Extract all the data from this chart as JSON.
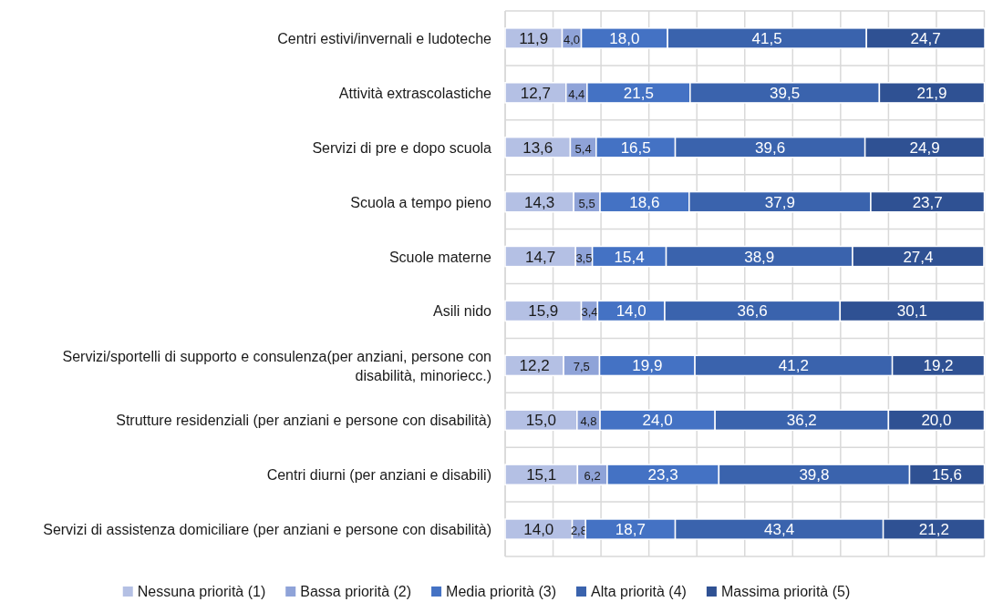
{
  "chart_data": {
    "type": "bar",
    "orientation": "horizontal",
    "stacked": true,
    "grid": true,
    "legend": "bottom",
    "tick_labels": "y",
    "categories": [
      "Centri estivi/invernali e ludoteche",
      "Attività extrascolastiche",
      "Servizi di pre e dopo scuola",
      "Scuola a tempo pieno",
      "Scuole materne",
      "Asili nido",
      "Servizi/sportelli di supporto e consulenza(per anziani, persone con disabilità, minoriecc.)",
      "Strutture residenziali (per anziani e persone con disabilità)",
      "Centri diurni (per anziani e disabili)",
      "Servizi di assistenza domiciliare (per anziani e persone con disabilità)"
    ],
    "series": [
      {
        "name": "Nessuna priorità (1)",
        "color": "#b4c0e4",
        "values": [
          11.9,
          12.7,
          13.6,
          14.3,
          14.7,
          15.9,
          12.2,
          15.0,
          15.1,
          14.0
        ],
        "value_labels": [
          "11,9",
          "12,7",
          "13,6",
          "14,3",
          "14,7",
          "15,9",
          "12,2",
          "15,0",
          "15,1",
          "14,0"
        ]
      },
      {
        "name": "Bassa priorità (2)",
        "color": "#8fa3d8",
        "values": [
          4.0,
          4.4,
          5.4,
          5.5,
          3.5,
          3.4,
          7.5,
          4.8,
          6.2,
          2.8
        ],
        "value_labels": [
          "4,0",
          "4,4",
          "5,4",
          "5,5",
          "3,5",
          "3,4",
          "7,5",
          "4,8",
          "6,2",
          "2,8"
        ]
      },
      {
        "name": "Media priorità (3)",
        "color": "#4472c4",
        "values": [
          18.0,
          21.5,
          16.5,
          18.6,
          15.4,
          14.0,
          19.9,
          24.0,
          23.3,
          18.7
        ],
        "value_labels": [
          "18,0",
          "21,5",
          "16,5",
          "18,6",
          "15,4",
          "14,0",
          "19,9",
          "24,0",
          "23,3",
          "18,7"
        ]
      },
      {
        "name": "Alta priorità (4)",
        "color": "#3a63ad",
        "values": [
          41.5,
          39.5,
          39.6,
          37.9,
          38.9,
          36.6,
          41.2,
          36.2,
          39.8,
          43.4
        ],
        "value_labels": [
          "41,5",
          "39,5",
          "39,6",
          "37,9",
          "38,9",
          "36,6",
          "41,2",
          "36,2",
          "39,8",
          "43,4"
        ]
      },
      {
        "name": "Massima priorità (5)",
        "color": "#2f5193",
        "values": [
          24.7,
          21.9,
          24.9,
          23.7,
          27.4,
          30.1,
          19.2,
          20.0,
          15.6,
          21.2
        ],
        "value_labels": [
          "24,7",
          "21,9",
          "24,9",
          "23,7",
          "27,4",
          "30,1",
          "19,2",
          "20,0",
          "15,6",
          "21,2"
        ]
      }
    ]
  }
}
